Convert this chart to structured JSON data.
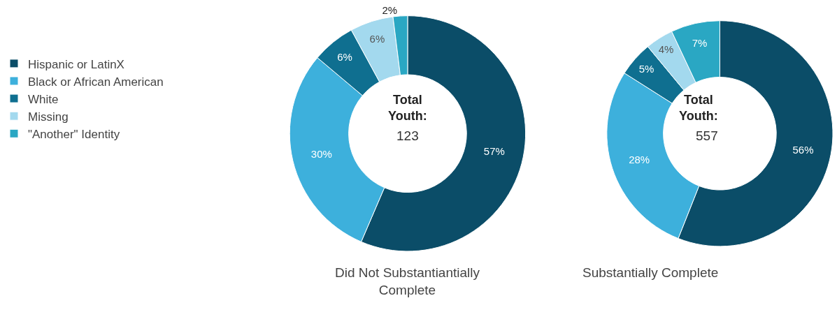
{
  "chart_data": [
    {
      "type": "donut",
      "title": "Did Not Substantiantially Complete",
      "categories": [
        "Hispanic or LatinX",
        "Black or African American",
        "White",
        "Missing",
        "\"Another\" Identity"
      ],
      "values": [
        57,
        30,
        6,
        6,
        2
      ],
      "value_labels": [
        "57%",
        "30%",
        "6%",
        "6%",
        "2%"
      ],
      "colors": [
        "#0b4d68",
        "#3db0dc",
        "#0f6f90",
        "#a3d9ee",
        "#2aa7c3"
      ],
      "annotations": [
        "Total Youth:",
        "123"
      ],
      "legend": "left"
    },
    {
      "type": "donut",
      "title": "Substantially Complete",
      "categories": [
        null,
        null,
        null,
        null,
        null
      ],
      "values": [
        56,
        28,
        5,
        4,
        7
      ],
      "value_labels": [
        "56%",
        "28%",
        "5%",
        "4%",
        "7%"
      ],
      "colors": [
        "#0b4d68",
        "#3db0dc",
        "#0f6f90",
        "#a3d9ee",
        "#2aa7c3"
      ],
      "annotations": [
        "Total Youth:",
        "557"
      ]
    }
  ]
}
